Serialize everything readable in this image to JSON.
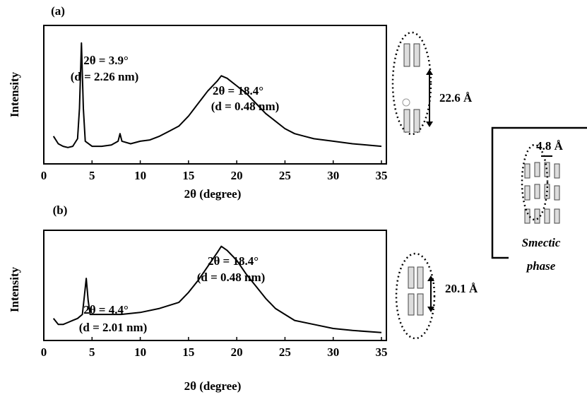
{
  "chart_data": [
    {
      "type": "line",
      "panel_label": "(a)",
      "x_label": "2θ (degree)",
      "y_label": "Intensity",
      "annotations": [
        "2θ = 3.9°",
        "(d = 2.26 nm)",
        "2θ = 18.4°",
        "(d = 0.48 nm)"
      ],
      "x": [
        1,
        1.5,
        2,
        2.5,
        3,
        3.5,
        3.7,
        3.9,
        4.1,
        4.3,
        5,
        6,
        7,
        7.7,
        7.9,
        8.1,
        9,
        10,
        11,
        12,
        13,
        14,
        15,
        16,
        17,
        18,
        18.4,
        19,
        20,
        21,
        22,
        23,
        24,
        25,
        26,
        27,
        28,
        30,
        32,
        35
      ],
      "values": [
        11,
        8,
        7,
        6.5,
        7,
        10,
        22,
        48,
        22,
        9,
        7,
        7,
        7.5,
        9,
        12,
        9,
        8,
        9,
        9.5,
        11,
        13,
        15,
        19,
        24,
        29,
        33,
        35,
        34,
        31,
        28,
        24,
        20,
        17,
        14,
        12,
        11,
        10,
        9,
        8,
        7
      ],
      "color": "#000000",
      "xlim": [
        0,
        35
      ],
      "ylim": [
        0,
        55
      ],
      "xticks": [
        0,
        5,
        10,
        15,
        20,
        25,
        30,
        35
      ]
    },
    {
      "type": "line",
      "panel_label": "(b)",
      "x_label": "2θ (degree)",
      "y_label": "Intensity",
      "annotations": [
        "2θ = 4.4°",
        "(d = 2.01 nm)",
        "2θ = 18.4°",
        "(d = 0.48 nm)"
      ],
      "x": [
        1,
        1.5,
        2,
        2.5,
        3,
        3.5,
        4,
        4.2,
        4.4,
        4.6,
        4.8,
        5.5,
        6,
        8,
        10,
        12,
        14,
        15,
        16,
        17,
        18,
        18.4,
        19,
        20,
        21,
        22,
        23,
        24,
        25,
        26,
        28,
        30,
        32,
        35
      ],
      "values": [
        11,
        8,
        8,
        9,
        10,
        11,
        13,
        22,
        31,
        20,
        13,
        13,
        13,
        13,
        14,
        16,
        19,
        24,
        30,
        37,
        44,
        47,
        45,
        40,
        33,
        27,
        21,
        16,
        13,
        10,
        8,
        6,
        5,
        4
      ],
      "color": "#000000",
      "xlim": [
        0,
        35
      ],
      "ylim": [
        0,
        55
      ],
      "xticks": [
        0,
        5,
        10,
        15,
        20,
        25,
        30,
        35
      ]
    }
  ],
  "schematics": {
    "spacing_a": "22.6 Å",
    "spacing_b": "20.1 Å",
    "inset_spacing": "4.8 Å",
    "inset_label_1": "Smectic",
    "inset_label_2": "phase"
  }
}
